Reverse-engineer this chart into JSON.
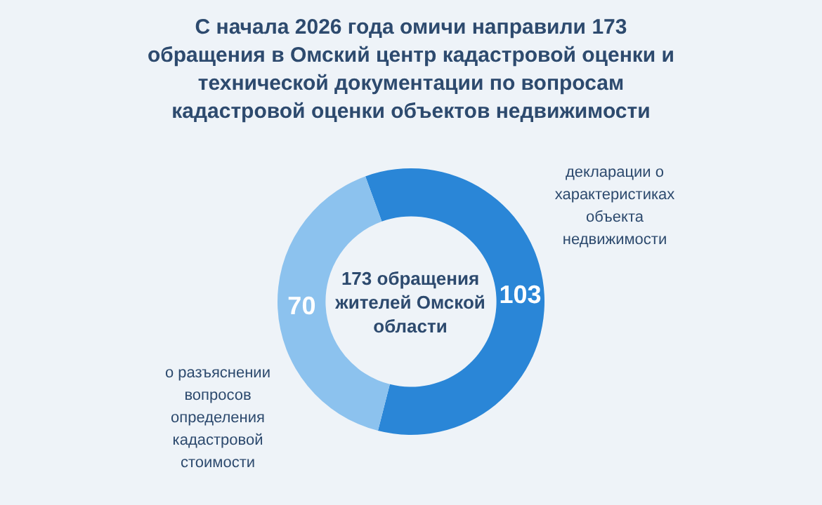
{
  "chart_data": {
    "type": "donut",
    "title": "С начала 2026 года омичи направили 173 обращения в Омский центр кадастровой оценки и технической документации по вопросам кадастровой оценки объектов недвижимости",
    "categories": [
      "декларации о характеристиках объекта недвижимости",
      "о разъяснении вопросов определения кадастровой стоимости"
    ],
    "values": [
      103,
      70
    ],
    "colors": [
      "#2a86d7",
      "#8cc2ee"
    ],
    "data_labels": true,
    "legend": false,
    "annotations": [
      "173 обращения жителей Омской области"
    ]
  }
}
